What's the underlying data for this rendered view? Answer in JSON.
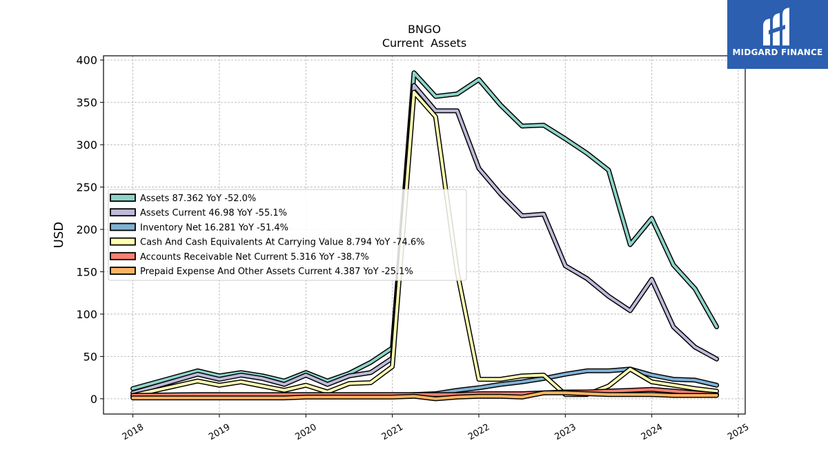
{
  "brand": {
    "name": "MIDGARD FINANCE"
  },
  "chart_data": {
    "type": "line",
    "title": "BNGO",
    "subtitle": "Current  Assets",
    "ylabel": "USD",
    "xlabel": "",
    "ylim": [
      -18,
      405
    ],
    "xlim": [
      2017.66,
      2025.08
    ],
    "yticks": [
      0,
      50,
      100,
      150,
      200,
      250,
      300,
      350,
      400
    ],
    "xticks": [
      2018,
      2019,
      2020,
      2021,
      2022,
      2023,
      2024,
      2025
    ],
    "grid": true,
    "legend_position": "upper-left",
    "x": [
      2018.0,
      2018.75,
      2019.0,
      2019.25,
      2019.5,
      2019.75,
      2020.0,
      2020.25,
      2020.5,
      2020.75,
      2021.0,
      2021.25,
      2021.5,
      2021.75,
      2022.0,
      2022.25,
      2022.5,
      2022.75,
      2023.0,
      2023.25,
      2023.5,
      2023.75,
      2024.0,
      2024.25,
      2024.5,
      2024.75
    ],
    "series": [
      {
        "name": "Assets  87.362 YoY -52.0%",
        "color": "#8dd3c7",
        "values": [
          12,
          33,
          27,
          31,
          27,
          21,
          31,
          21,
          30,
          43,
          60,
          385,
          357,
          360,
          377,
          347,
          322,
          323,
          307,
          290,
          270,
          182,
          213,
          158,
          130,
          85
        ]
      },
      {
        "name": "Assets Current  46.98 YoY -55.1%",
        "color": "#bebada",
        "values": [
          7,
          29,
          23,
          28,
          24,
          17,
          28,
          17,
          27,
          31,
          48,
          370,
          340,
          340,
          272,
          242,
          216,
          218,
          157,
          142,
          121,
          104,
          141,
          85,
          61,
          47
        ]
      },
      {
        "name": "Inventory Net  16.281 YoY -51.4%",
        "color": "#80b1d3",
        "values": [
          3,
          4,
          4,
          4,
          4,
          4,
          4,
          4,
          4,
          4,
          4,
          5,
          6,
          10,
          13,
          17,
          20,
          24,
          29,
          33,
          33,
          35,
          28,
          23,
          22,
          16
        ]
      },
      {
        "name": "Cash And Cash Equivalents At Carrying Value  8.794 YoY -74.6%",
        "color": "#ffffb3",
        "values": [
          4,
          21,
          16,
          20,
          15,
          10,
          16,
          8,
          18,
          19,
          38,
          362,
          333,
          150,
          23,
          23,
          27,
          28,
          5,
          5,
          15,
          35,
          20,
          16,
          12,
          9
        ]
      },
      {
        "name": "Accounts Receivable Net Current  5.316 YoY -38.7%",
        "color": "#fb8072",
        "values": [
          4,
          5,
          5,
          5,
          5,
          5,
          5,
          5,
          5,
          5,
          5,
          5,
          5,
          5,
          6,
          6,
          6,
          7,
          8,
          8,
          9,
          10,
          11,
          9,
          7,
          5
        ]
      },
      {
        "name": "Prepaid Expense And Other Assets Current  4.387 YoY -25.1%",
        "color": "#fdb462",
        "values": [
          1,
          1,
          1,
          1,
          1,
          1,
          2,
          2,
          2,
          2,
          2,
          3,
          0,
          2,
          3,
          3,
          2,
          7,
          7,
          6,
          5,
          5,
          5,
          4,
          4,
          4
        ]
      }
    ]
  }
}
